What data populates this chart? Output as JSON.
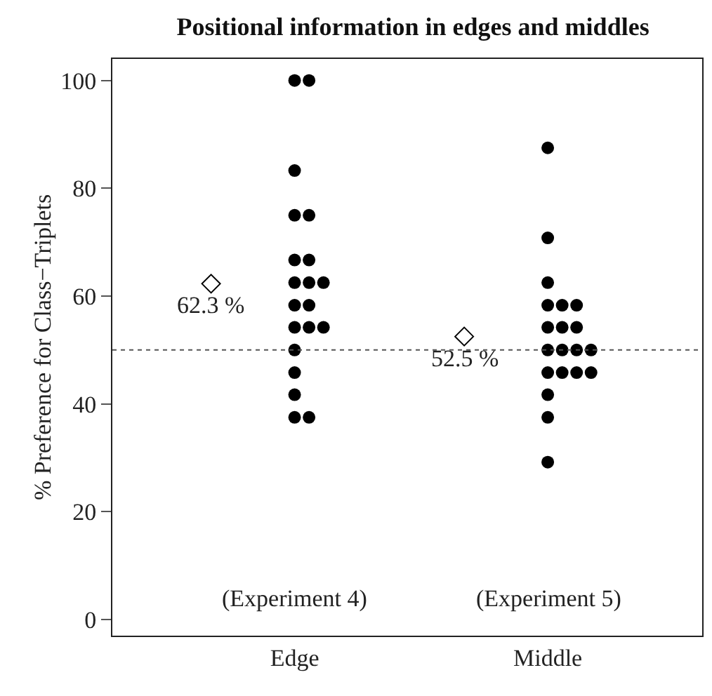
{
  "chart_data": {
    "type": "scatter",
    "title": "Positional information in edges and middles",
    "ylabel": "% Preference for Class−Triplets",
    "categories": [
      "Edge",
      "Middle"
    ],
    "ylim": [
      -3,
      104
    ],
    "yticks": [
      0,
      20,
      40,
      60,
      80,
      100
    ],
    "grid": false,
    "series": [
      {
        "type": "scatter",
        "color": "#000000",
        "marker": "circle",
        "x": [
          "Edge",
          "Edge",
          "Edge",
          "Edge",
          "Edge",
          "Edge",
          "Edge",
          "Edge",
          "Edge",
          "Edge",
          "Edge",
          "Edge",
          "Edge",
          "Edge",
          "Edge",
          "Edge",
          "Edge",
          "Edge",
          "Edge",
          "Edge",
          "Middle",
          "Middle",
          "Middle",
          "Middle",
          "Middle",
          "Middle",
          "Middle",
          "Middle",
          "Middle",
          "Middle",
          "Middle",
          "Middle",
          "Middle",
          "Middle",
          "Middle",
          "Middle",
          "Middle",
          "Middle",
          "Middle",
          "Middle"
        ],
        "values": [
          100,
          100,
          83.3,
          75,
          75,
          66.7,
          66.7,
          62.5,
          62.5,
          62.5,
          58.3,
          58.3,
          54.2,
          54.2,
          54.2,
          50,
          45.8,
          41.7,
          37.5,
          37.5,
          87.5,
          70.8,
          62.5,
          58.3,
          58.3,
          58.3,
          54.2,
          54.2,
          54.2,
          50,
          50,
          50,
          50,
          45.8,
          45.8,
          45.8,
          45.8,
          41.7,
          37.5,
          29.2
        ]
      },
      {
        "type": "scatter",
        "color": "#000000",
        "marker": "diamond",
        "x": [
          "Edge",
          "Middle"
        ],
        "values": [
          62.3,
          52.5
        ]
      }
    ],
    "ref_lines": [
      {
        "axis": "y",
        "value": 50,
        "line_style": "dotted",
        "color": "#555555"
      }
    ],
    "annotations": [
      {
        "text": "62.3 %",
        "x": "Edge",
        "y": 62.3
      },
      {
        "text": "52.5 %",
        "x": "Middle",
        "y": 52.5
      },
      "(Experiment 4)",
      "(Experiment 5)"
    ]
  }
}
